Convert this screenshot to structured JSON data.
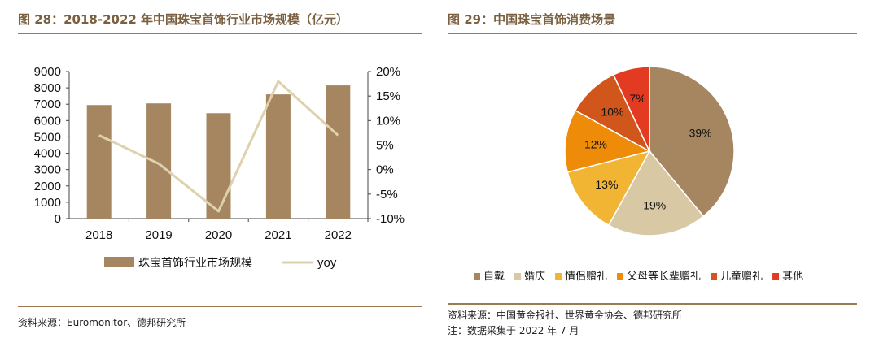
{
  "charts": [
    {
      "figure_title": "图 28：2018-2022 年中国珠宝首饰行业市场规模（亿元）",
      "source": "资料来源：Euromonitor、德邦研究所"
    },
    {
      "figure_title": "图 29：中国珠宝首饰消费场景",
      "source": "资料来源：中国黄金报社、世界黄金协会、德邦研究所",
      "note": "注：数据采集于 2022 年 7 月"
    }
  ],
  "chart_data": [
    {
      "type": "bar",
      "categories": [
        "2018",
        "2019",
        "2020",
        "2021",
        "2022"
      ],
      "series": [
        {
          "name": "珠宝首饰行业市场规模",
          "type": "bar",
          "axis": "left",
          "color": "#a58660",
          "values": [
            6950,
            7050,
            6450,
            7600,
            8150
          ]
        },
        {
          "name": "yoy",
          "type": "line",
          "axis": "right",
          "color": "#ddd2ad",
          "values": [
            7,
            1.2,
            -8.5,
            18,
            7
          ]
        }
      ],
      "y_ticks": [
        "0",
        "1000",
        "2000",
        "3000",
        "4000",
        "5000",
        "6000",
        "7000",
        "8000",
        "9000"
      ],
      "y2_ticks": [
        "20%",
        "15%",
        "10%",
        "5%",
        "0%",
        "-5%",
        "-10%"
      ],
      "ylim": [
        0,
        9000
      ],
      "y2lim": [
        -10,
        20
      ],
      "legend_position": "bottom",
      "grid": false
    },
    {
      "type": "pie",
      "slices": [
        {
          "label": "自戴",
          "value": 39,
          "value_label": "39%",
          "color": "#a58660"
        },
        {
          "label": "婚庆",
          "value": 19,
          "value_label": "19%",
          "color": "#d8c9a4"
        },
        {
          "label": "情侣赠礼",
          "value": 13,
          "value_label": "13%",
          "color": "#f2b433"
        },
        {
          "label": "父母等长辈赠礼",
          "value": 12,
          "value_label": "12%",
          "color": "#ee8c0a"
        },
        {
          "label": "儿童赠礼",
          "value": 10,
          "value_label": "10%",
          "color": "#d0561c"
        },
        {
          "label": "其他",
          "value": 7,
          "value_label": "7%",
          "color": "#e33a22"
        }
      ],
      "legend_position": "bottom"
    }
  ]
}
